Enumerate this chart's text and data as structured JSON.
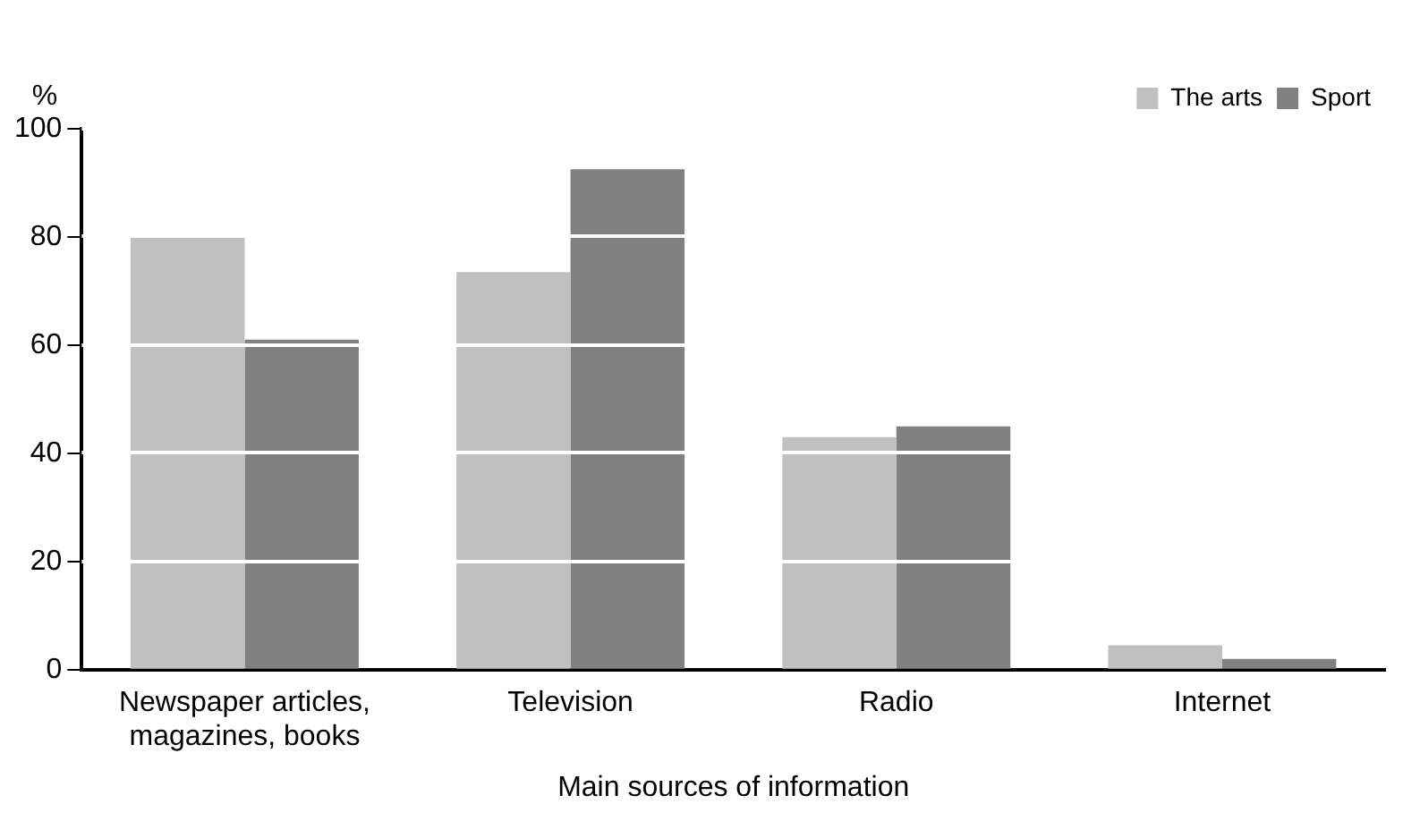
{
  "chart_data": {
    "type": "bar",
    "xlabel": "Main sources of information",
    "ylabel": "%",
    "categories": [
      "Newspaper articles, magazines, books",
      "Television",
      "Radio",
      "Internet"
    ],
    "series": [
      {
        "name": "The arts",
        "color": "#c0c0c0",
        "values": [
          80,
          73.5,
          43,
          4.5
        ]
      },
      {
        "name": "Sport",
        "color": "#808080",
        "values": [
          61,
          92.5,
          45,
          2
        ]
      }
    ],
    "ylim": [
      0,
      100
    ],
    "yticks": [
      0,
      20,
      40,
      60,
      80,
      100
    ],
    "grid": "y",
    "legend": "top right"
  }
}
